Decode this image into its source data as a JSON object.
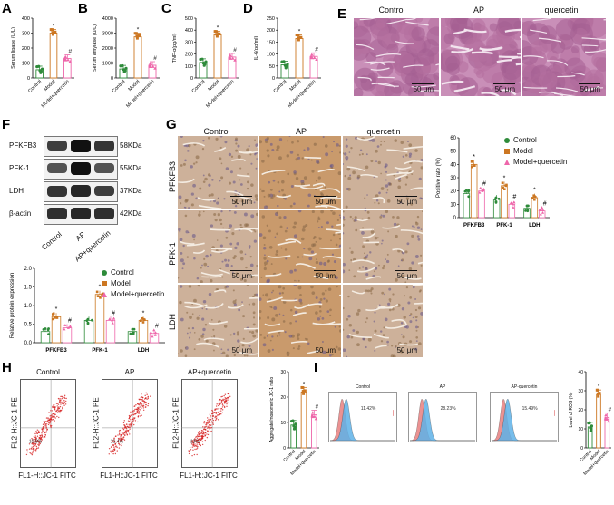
{
  "panels": {
    "a": "A",
    "b": "B",
    "c": "C",
    "d": "D",
    "e": "E",
    "f": "F",
    "g": "G",
    "h": "H",
    "i": "I"
  },
  "colors": {
    "control": "#2e8b3a",
    "model": "#cc7722",
    "quercetin": "#ee66aa"
  },
  "chart_data": [
    {
      "id": "A",
      "type": "bar",
      "categories": [
        "Control",
        "Model",
        "Model+quercetin"
      ],
      "values": [
        55,
        300,
        130
      ],
      "ylabel": "Serum lipase (U/L)",
      "ylim": [
        0,
        400
      ],
      "yticks": [
        0,
        100,
        200,
        300,
        400
      ],
      "markers": [
        "",
        "*",
        "#"
      ]
    },
    {
      "id": "B",
      "type": "bar",
      "categories": [
        "Control",
        "Model",
        "Model+quercetin"
      ],
      "values": [
        600,
        2750,
        850
      ],
      "ylabel": "Serum amylase (U/L)",
      "ylim": [
        0,
        4000
      ],
      "yticks": [
        0,
        1000,
        2000,
        3000,
        4000
      ],
      "markers": [
        "",
        "*",
        "#"
      ]
    },
    {
      "id": "C",
      "type": "bar",
      "categories": [
        "Control",
        "Model",
        "Model+quercetin"
      ],
      "values": [
        130,
        360,
        175
      ],
      "ylabel": "TNF-α(pg/ml)",
      "ylim": [
        0,
        500
      ],
      "yticks": [
        0,
        100,
        200,
        300,
        400,
        500
      ],
      "markers": [
        "",
        "*",
        "#"
      ]
    },
    {
      "id": "D",
      "type": "bar",
      "categories": [
        "Control",
        "Model",
        "Model+quercetin"
      ],
      "values": [
        55,
        165,
        90
      ],
      "ylabel": "IL-6(pg/ml)",
      "ylim": [
        0,
        250
      ],
      "yticks": [
        0,
        50,
        100,
        150,
        200,
        250
      ],
      "markers": [
        "",
        "*",
        "#"
      ]
    },
    {
      "id": "F",
      "type": "bar",
      "categories": [
        "PFKFB3",
        "PFK-1",
        "LDH"
      ],
      "series": [
        {
          "name": "Control",
          "values": [
            0.3,
            0.6,
            0.3
          ]
        },
        {
          "name": "Model",
          "values": [
            0.7,
            1.3,
            0.6
          ]
        },
        {
          "name": "Model+quercetin",
          "values": [
            0.4,
            0.6,
            0.25
          ]
        }
      ],
      "ylabel": "Relative protein expression",
      "ylim": [
        0,
        2.0
      ],
      "yticks": [
        0.0,
        0.5,
        1.0,
        1.5,
        2.0
      ],
      "markers": [
        [
          "",
          "*",
          "#"
        ],
        [
          "",
          "*",
          "#"
        ],
        [
          "",
          "*",
          "#"
        ]
      ]
    },
    {
      "id": "G",
      "type": "bar",
      "categories": [
        "PFKFB3",
        "PFK-1",
        "LDH"
      ],
      "series": [
        {
          "name": "Control",
          "values": [
            18,
            14,
            7
          ]
        },
        {
          "name": "Model",
          "values": [
            40,
            24,
            15
          ]
        },
        {
          "name": "Model+quercetin",
          "values": [
            20,
            10,
            5
          ]
        }
      ],
      "ylabel": "Positive rate (%)",
      "ylim": [
        0,
        60
      ],
      "yticks": [
        0,
        10,
        20,
        30,
        40,
        50,
        60
      ],
      "markers": [
        [
          "",
          "*",
          "#"
        ],
        [
          "",
          "*",
          "#"
        ],
        [
          "",
          "*",
          "#"
        ]
      ]
    },
    {
      "id": "H",
      "type": "bar",
      "categories": [
        "Control",
        "Model",
        "Model+quercetin"
      ],
      "values": [
        9,
        22,
        13
      ],
      "ylabel": "Aggregate/monomeric JC-1 ratio",
      "ylim": [
        0,
        30
      ],
      "yticks": [
        0,
        10,
        20,
        30
      ],
      "markers": [
        "",
        "*",
        "#"
      ]
    },
    {
      "id": "I",
      "type": "bar",
      "categories": [
        "Control",
        "Model",
        "Model+quercetin"
      ],
      "values": [
        11,
        28,
        16
      ],
      "ylabel": "Level of ROS (%)",
      "ylim": [
        0,
        40
      ],
      "yticks": [
        0,
        10,
        20,
        30,
        40
      ],
      "markers": [
        "",
        "*",
        "#"
      ]
    }
  ],
  "he": {
    "columns": [
      "Control",
      "AP",
      "quercetin"
    ],
    "scale": "50 μm"
  },
  "western": {
    "proteins": [
      {
        "name": "PFKFB3",
        "size": "58KDa"
      },
      {
        "name": "PFK-1",
        "size": "55KDa"
      },
      {
        "name": "LDH",
        "size": "37KDa"
      },
      {
        "name": "β-actin",
        "size": "42KDa"
      }
    ],
    "lanes": [
      "Control",
      "AP",
      "AP+quercetin"
    ],
    "band_intensity": [
      [
        0.7,
        1.0,
        0.75
      ],
      [
        0.55,
        1.0,
        0.55
      ],
      [
        0.75,
        0.85,
        0.7
      ],
      [
        0.8,
        0.85,
        0.8
      ]
    ]
  },
  "ihc": {
    "columns": [
      "Control",
      "AP",
      "quercetin"
    ],
    "rows": [
      "PFKFB3",
      "PFK-1",
      "LDH"
    ],
    "scale": "50 μm"
  },
  "flow": {
    "titles": [
      "Control",
      "AP",
      "AP+quercetin"
    ],
    "ylabel": "FL2-H::JC-1 PE",
    "xlabel": "FL1-H::JC-1 FITC",
    "percents": [
      "10.8%",
      "21.4%",
      "13%"
    ]
  },
  "ros": {
    "titles": [
      "Control",
      "AP",
      "AP-quercetin"
    ],
    "percents": [
      "11.42%",
      "28.23%",
      "15.49%"
    ]
  }
}
